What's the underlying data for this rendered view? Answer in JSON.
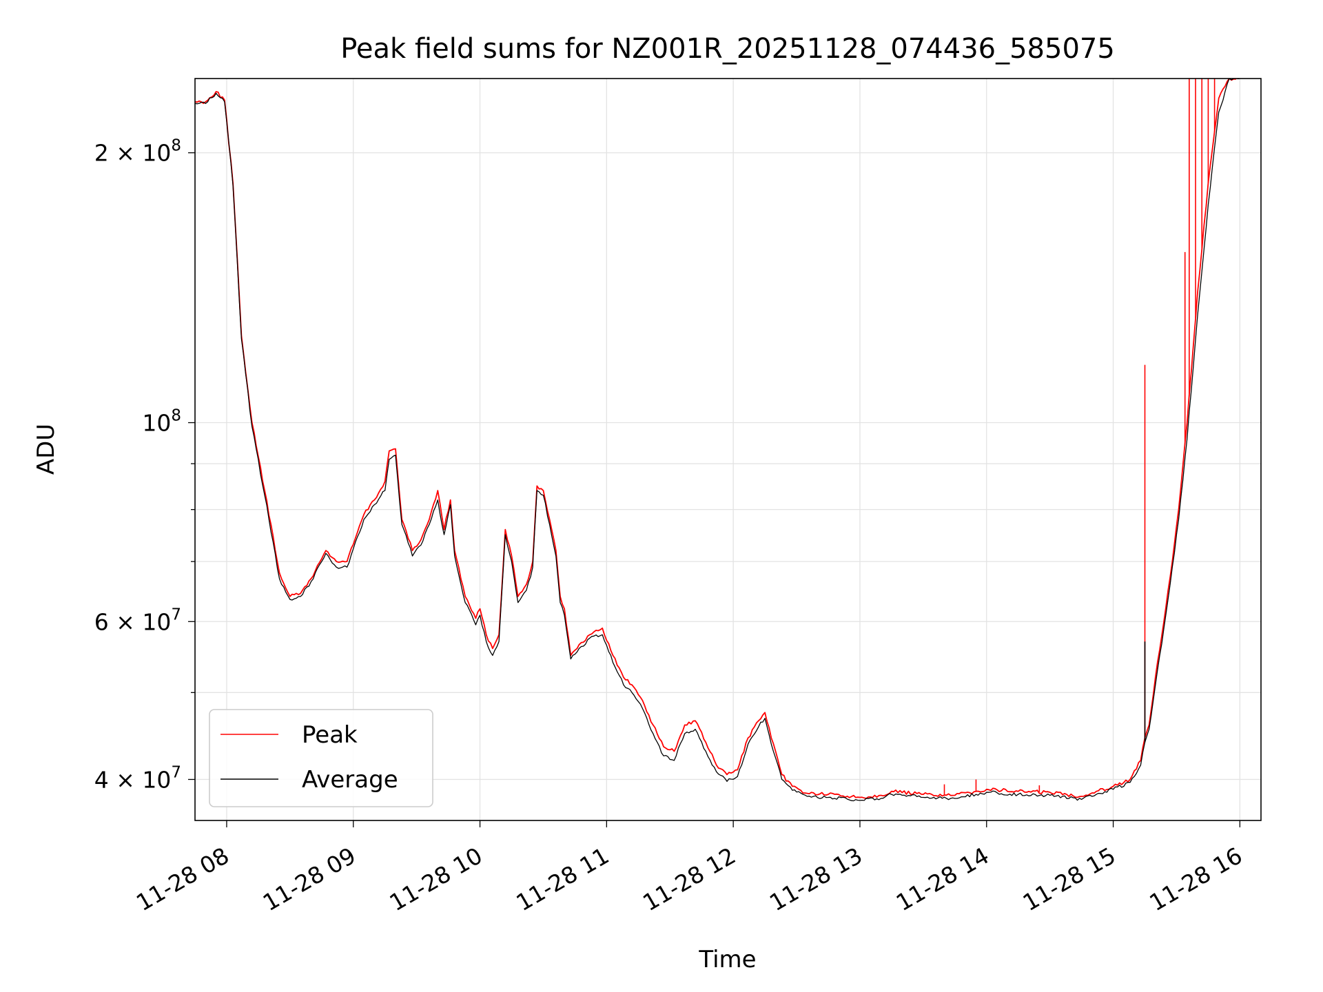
{
  "chart_data": {
    "type": "line",
    "title": "Peak field sums for NZ001R_20251128_074436_585075",
    "xlabel": "Time",
    "ylabel": "ADU",
    "yscale": "log",
    "xlim": [
      "2025-11-28 07:45",
      "2025-11-28 16:10"
    ],
    "ylim": [
      36000000,
      242000000
    ],
    "grid": true,
    "legend": "lower-left",
    "x_ticks": [
      {
        "t": "2025-11-28 08:00",
        "label": "11-28 08"
      },
      {
        "t": "2025-11-28 09:00",
        "label": "11-28 09"
      },
      {
        "t": "2025-11-28 10:00",
        "label": "11-28 10"
      },
      {
        "t": "2025-11-28 11:00",
        "label": "11-28 11"
      },
      {
        "t": "2025-11-28 12:00",
        "label": "11-28 12"
      },
      {
        "t": "2025-11-28 13:00",
        "label": "11-28 13"
      },
      {
        "t": "2025-11-28 14:00",
        "label": "11-28 14"
      },
      {
        "t": "2025-11-28 15:00",
        "label": "11-28 15"
      },
      {
        "t": "2025-11-28 16:00",
        "label": "11-28 16"
      }
    ],
    "y_major_ticks": [
      {
        "value": 40000000,
        "mantissa": "4 × 10",
        "exp": "7"
      },
      {
        "value": 60000000,
        "mantissa": "6 × 10",
        "exp": "7"
      },
      {
        "value": 100000000,
        "mantissa": "10",
        "exp": "8"
      },
      {
        "value": 200000000,
        "mantissa": "2 × 10",
        "exp": "8"
      }
    ],
    "y_minor_ticks": [
      50000000,
      70000000,
      80000000,
      90000000
    ],
    "series": [
      {
        "name": "Peak",
        "color": "#ff0000",
        "points": [
          [
            "2025-11-28 07:45",
            228000000
          ],
          [
            "2025-11-28 07:50",
            228000000
          ],
          [
            "2025-11-28 07:55",
            234000000
          ],
          [
            "2025-11-28 07:59",
            229000000
          ],
          [
            "2025-11-28 08:03",
            185000000
          ],
          [
            "2025-11-28 08:07",
            125000000
          ],
          [
            "2025-11-28 08:12",
            100000000
          ],
          [
            "2025-11-28 08:18",
            84000000
          ],
          [
            "2025-11-28 08:25",
            68000000
          ],
          [
            "2025-11-28 08:30",
            64000000
          ],
          [
            "2025-11-28 08:35",
            64500000
          ],
          [
            "2025-11-28 08:40",
            67000000
          ],
          [
            "2025-11-28 08:47",
            72000000
          ],
          [
            "2025-11-28 08:52",
            70000000
          ],
          [
            "2025-11-28 08:57",
            70000000
          ],
          [
            "2025-11-28 09:05",
            79000000
          ],
          [
            "2025-11-28 09:10",
            82000000
          ],
          [
            "2025-11-28 09:15",
            86000000
          ],
          [
            "2025-11-28 09:17",
            93000000
          ],
          [
            "2025-11-28 09:20",
            93500000
          ],
          [
            "2025-11-28 09:23",
            78000000
          ],
          [
            "2025-11-28 09:28",
            72000000
          ],
          [
            "2025-11-28 09:32",
            74000000
          ],
          [
            "2025-11-28 09:36",
            78000000
          ],
          [
            "2025-11-28 09:40",
            84000000
          ],
          [
            "2025-11-28 09:43",
            76000000
          ],
          [
            "2025-11-28 09:46",
            82000000
          ],
          [
            "2025-11-28 09:48",
            72000000
          ],
          [
            "2025-11-28 09:53",
            64000000
          ],
          [
            "2025-11-28 09:58",
            60500000
          ],
          [
            "2025-11-28 10:00",
            62000000
          ],
          [
            "2025-11-28 10:03",
            58000000
          ],
          [
            "2025-11-28 10:06",
            56000000
          ],
          [
            "2025-11-28 10:09",
            58000000
          ],
          [
            "2025-11-28 10:12",
            76000000
          ],
          [
            "2025-11-28 10:15",
            71000000
          ],
          [
            "2025-11-28 10:18",
            64000000
          ],
          [
            "2025-11-28 10:22",
            66000000
          ],
          [
            "2025-11-28 10:25",
            70000000
          ],
          [
            "2025-11-28 10:27",
            85000000
          ],
          [
            "2025-11-28 10:30",
            84000000
          ],
          [
            "2025-11-28 10:33",
            78000000
          ],
          [
            "2025-11-28 10:36",
            72000000
          ],
          [
            "2025-11-28 10:38",
            64000000
          ],
          [
            "2025-11-28 10:40",
            62000000
          ],
          [
            "2025-11-28 10:43",
            55000000
          ],
          [
            "2025-11-28 10:46",
            56000000
          ],
          [
            "2025-11-28 10:52",
            58000000
          ],
          [
            "2025-11-28 10:58",
            59000000
          ],
          [
            "2025-11-28 11:03",
            55000000
          ],
          [
            "2025-11-28 11:08",
            52000000
          ],
          [
            "2025-11-28 11:12",
            51000000
          ],
          [
            "2025-11-28 11:17",
            49000000
          ],
          [
            "2025-11-28 11:22",
            46000000
          ],
          [
            "2025-11-28 11:27",
            43500000
          ],
          [
            "2025-11-28 11:32",
            43000000
          ],
          [
            "2025-11-28 11:37",
            46000000
          ],
          [
            "2025-11-28 11:42",
            46500000
          ],
          [
            "2025-11-28 11:47",
            44000000
          ],
          [
            "2025-11-28 11:52",
            41500000
          ],
          [
            "2025-11-28 11:57",
            40500000
          ],
          [
            "2025-11-28 12:02",
            41000000
          ],
          [
            "2025-11-28 12:07",
            44500000
          ],
          [
            "2025-11-28 12:12",
            46500000
          ],
          [
            "2025-11-28 12:15",
            47500000
          ],
          [
            "2025-11-28 12:18",
            44500000
          ],
          [
            "2025-11-28 12:23",
            40500000
          ],
          [
            "2025-11-28 12:28",
            39300000
          ],
          [
            "2025-11-28 12:35",
            38600000
          ],
          [
            "2025-11-28 12:45",
            38500000
          ],
          [
            "2025-11-28 13:00",
            38200000
          ],
          [
            "2025-11-28 13:10",
            38400000
          ],
          [
            "2025-11-28 13:15",
            38800000
          ],
          [
            "2025-11-28 13:30",
            38500000
          ],
          [
            "2025-11-28 13:45",
            38400000
          ],
          [
            "2025-11-28 13:55",
            38800000
          ],
          [
            "2025-11-28 14:00",
            39000000
          ],
          [
            "2025-11-28 14:15",
            38800000
          ],
          [
            "2025-11-28 14:30",
            38700000
          ],
          [
            "2025-11-28 14:45",
            38300000
          ],
          [
            "2025-11-28 14:52",
            38800000
          ],
          [
            "2025-11-28 15:00",
            39300000
          ],
          [
            "2025-11-28 15:08",
            40000000
          ],
          [
            "2025-11-28 15:13",
            42000000
          ],
          [
            "2025-11-28 15:15",
            44500000
          ],
          [
            "2025-11-28 15:17",
            46000000
          ],
          [
            "2025-11-28 15:20",
            52000000
          ],
          [
            "2025-11-28 15:24",
            60000000
          ],
          [
            "2025-11-28 15:28",
            70000000
          ],
          [
            "2025-11-28 15:31",
            80000000
          ],
          [
            "2025-11-28 15:35",
            100000000
          ],
          [
            "2025-11-28 15:40",
            140000000
          ],
          [
            "2025-11-28 15:45",
            185000000
          ],
          [
            "2025-11-28 15:50",
            230000000
          ],
          [
            "2025-11-28 15:55",
            242000000
          ],
          [
            "2025-11-28 16:00",
            242000000
          ]
        ],
        "spikes": [
          [
            "2025-11-28 15:15",
            116000000
          ],
          [
            "2025-11-28 15:34",
            155000000
          ],
          [
            "2025-11-28 15:36",
            242000000
          ],
          [
            "2025-11-28 15:39",
            242000000
          ],
          [
            "2025-11-28 15:42",
            242000000
          ],
          [
            "2025-11-28 15:45",
            242000000
          ],
          [
            "2025-11-28 15:48",
            242000000
          ],
          [
            "2025-11-28 13:40",
            39500000
          ],
          [
            "2025-11-28 13:55",
            40000000
          ],
          [
            "2025-11-28 14:25",
            39400000
          ]
        ]
      },
      {
        "name": "Average",
        "color": "#000000",
        "points": [
          [
            "2025-11-28 07:45",
            227000000
          ],
          [
            "2025-11-28 07:50",
            227000000
          ],
          [
            "2025-11-28 07:55",
            233000000
          ],
          [
            "2025-11-28 07:59",
            228000000
          ],
          [
            "2025-11-28 08:03",
            184000000
          ],
          [
            "2025-11-28 08:07",
            124000000
          ],
          [
            "2025-11-28 08:12",
            99000000
          ],
          [
            "2025-11-28 08:18",
            83000000
          ],
          [
            "2025-11-28 08:25",
            67000000
          ],
          [
            "2025-11-28 08:30",
            63500000
          ],
          [
            "2025-11-28 08:35",
            64000000
          ],
          [
            "2025-11-28 08:40",
            66500000
          ],
          [
            "2025-11-28 08:47",
            71500000
          ],
          [
            "2025-11-28 08:52",
            69000000
          ],
          [
            "2025-11-28 08:57",
            69000000
          ],
          [
            "2025-11-28 09:05",
            78000000
          ],
          [
            "2025-11-28 09:10",
            81000000
          ],
          [
            "2025-11-28 09:15",
            84000000
          ],
          [
            "2025-11-28 09:17",
            91000000
          ],
          [
            "2025-11-28 09:20",
            92000000
          ],
          [
            "2025-11-28 09:23",
            77000000
          ],
          [
            "2025-11-28 09:28",
            71000000
          ],
          [
            "2025-11-28 09:32",
            73000000
          ],
          [
            "2025-11-28 09:36",
            77000000
          ],
          [
            "2025-11-28 09:40",
            82000000
          ],
          [
            "2025-11-28 09:43",
            75000000
          ],
          [
            "2025-11-28 09:46",
            81000000
          ],
          [
            "2025-11-28 09:48",
            71000000
          ],
          [
            "2025-11-28 09:53",
            63000000
          ],
          [
            "2025-11-28 09:58",
            59500000
          ],
          [
            "2025-11-28 10:00",
            61000000
          ],
          [
            "2025-11-28 10:03",
            57000000
          ],
          [
            "2025-11-28 10:06",
            55000000
          ],
          [
            "2025-11-28 10:09",
            57000000
          ],
          [
            "2025-11-28 10:12",
            75000000
          ],
          [
            "2025-11-28 10:15",
            70000000
          ],
          [
            "2025-11-28 10:18",
            63000000
          ],
          [
            "2025-11-28 10:22",
            65000000
          ],
          [
            "2025-11-28 10:25",
            69000000
          ],
          [
            "2025-11-28 10:27",
            84000000
          ],
          [
            "2025-11-28 10:30",
            83000000
          ],
          [
            "2025-11-28 10:33",
            77000000
          ],
          [
            "2025-11-28 10:36",
            71000000
          ],
          [
            "2025-11-28 10:38",
            63000000
          ],
          [
            "2025-11-28 10:40",
            61000000
          ],
          [
            "2025-11-28 10:43",
            54500000
          ],
          [
            "2025-11-28 10:46",
            55500000
          ],
          [
            "2025-11-28 10:52",
            57500000
          ],
          [
            "2025-11-28 10:58",
            58000000
          ],
          [
            "2025-11-28 11:03",
            54000000
          ],
          [
            "2025-11-28 11:08",
            51000000
          ],
          [
            "2025-11-28 11:12",
            50000000
          ],
          [
            "2025-11-28 11:17",
            48000000
          ],
          [
            "2025-11-28 11:22",
            45000000
          ],
          [
            "2025-11-28 11:27",
            42500000
          ],
          [
            "2025-11-28 11:32",
            42000000
          ],
          [
            "2025-11-28 11:37",
            45000000
          ],
          [
            "2025-11-28 11:42",
            45500000
          ],
          [
            "2025-11-28 11:47",
            43000000
          ],
          [
            "2025-11-28 11:52",
            40800000
          ],
          [
            "2025-11-28 11:57",
            39800000
          ],
          [
            "2025-11-28 12:02",
            40300000
          ],
          [
            "2025-11-28 12:07",
            43800000
          ],
          [
            "2025-11-28 12:12",
            45800000
          ],
          [
            "2025-11-28 12:15",
            46800000
          ],
          [
            "2025-11-28 12:18",
            43800000
          ],
          [
            "2025-11-28 12:23",
            40000000
          ],
          [
            "2025-11-28 12:28",
            38900000
          ],
          [
            "2025-11-28 12:35",
            38300000
          ],
          [
            "2025-11-28 12:45",
            38200000
          ],
          [
            "2025-11-28 13:00",
            37900000
          ],
          [
            "2025-11-28 13:10",
            38100000
          ],
          [
            "2025-11-28 13:15",
            38500000
          ],
          [
            "2025-11-28 13:30",
            38200000
          ],
          [
            "2025-11-28 13:45",
            38100000
          ],
          [
            "2025-11-28 13:55",
            38500000
          ],
          [
            "2025-11-28 14:00",
            38700000
          ],
          [
            "2025-11-28 14:15",
            38500000
          ],
          [
            "2025-11-28 14:30",
            38400000
          ],
          [
            "2025-11-28 14:45",
            38000000
          ],
          [
            "2025-11-28 14:52",
            38500000
          ],
          [
            "2025-11-28 15:00",
            39000000
          ],
          [
            "2025-11-28 15:08",
            39700000
          ],
          [
            "2025-11-28 15:13",
            41500000
          ],
          [
            "2025-11-28 15:15",
            44000000
          ],
          [
            "2025-11-28 15:17",
            45500000
          ],
          [
            "2025-11-28 15:20",
            51000000
          ],
          [
            "2025-11-28 15:24",
            59000000
          ],
          [
            "2025-11-28 15:28",
            69000000
          ],
          [
            "2025-11-28 15:31",
            78000000
          ],
          [
            "2025-11-28 15:35",
            96000000
          ],
          [
            "2025-11-28 15:40",
            132000000
          ],
          [
            "2025-11-28 15:45",
            175000000
          ],
          [
            "2025-11-28 15:50",
            222000000
          ],
          [
            "2025-11-28 15:55",
            242000000
          ],
          [
            "2025-11-28 16:00",
            242000000
          ]
        ],
        "spikes": [
          [
            "2025-11-28 15:15",
            57000000
          ]
        ]
      }
    ]
  }
}
